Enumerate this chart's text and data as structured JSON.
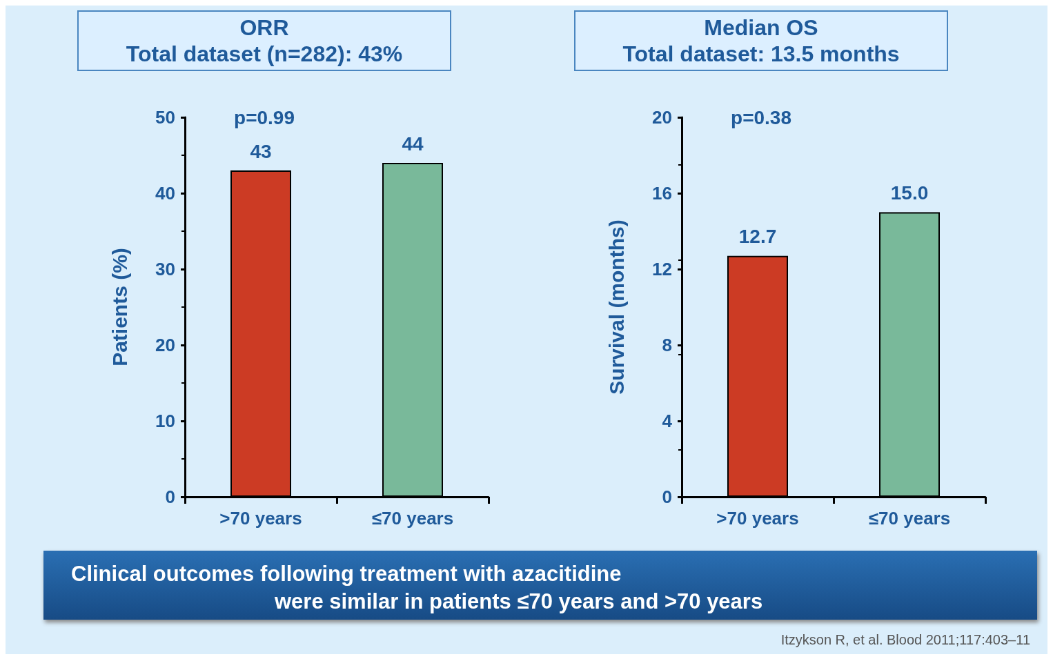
{
  "chart_data": [
    {
      "type": "bar",
      "title": "ORR",
      "subtitle": "Total dataset (n=282): 43%",
      "ylabel": "Patients (%)",
      "categories": [
        ">70 years",
        "≤70 years"
      ],
      "values": [
        43,
        44
      ],
      "colors": [
        "#cc3b24",
        "#79b99a"
      ],
      "ylim": [
        0,
        50
      ],
      "yticks": [
        0,
        10,
        20,
        30,
        40,
        50
      ],
      "data_labels": true,
      "annotations": [
        "p=0.99"
      ]
    },
    {
      "type": "bar",
      "title": "Median OS",
      "subtitle": "Total dataset: 13.5 months",
      "ylabel": "Survival (months)",
      "categories": [
        ">70 years",
        "≤70 years"
      ],
      "values": [
        12.7,
        15.0
      ],
      "value_labels": [
        "12.7",
        "15.0"
      ],
      "colors": [
        "#cc3b24",
        "#79b99a"
      ],
      "ylim": [
        0,
        20
      ],
      "yticks": [
        0,
        4,
        8,
        12,
        16,
        20
      ],
      "annotations": [
        "p=0.38"
      ]
    },
    {
      "type": "other",
      "annotations": [
        "Clinical outcomes following treatment with azacitidine",
        "were similar in patients ≤70 years and >70 years",
        "Itzykson R, et al. Blood 2011;117:403–11"
      ]
    }
  ]
}
